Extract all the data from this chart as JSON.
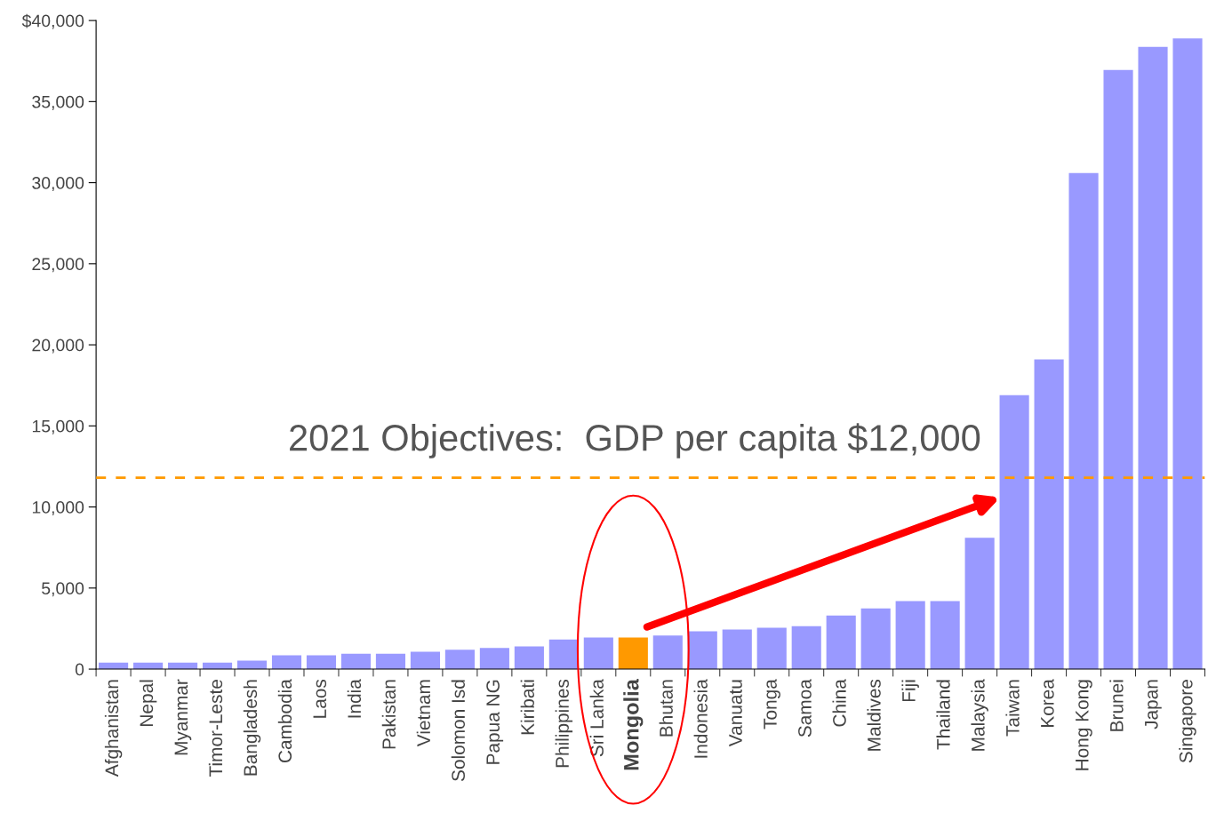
{
  "chart_data": {
    "type": "bar",
    "categories": [
      "Afghanistan",
      "Nepal",
      "Myanmar",
      "Timor-Leste",
      "Bangladesh",
      "Cambodia",
      "Laos",
      "India",
      "Pakistan",
      "Vietnam",
      "Solomon Isd",
      "Papua NG",
      "Kiribati",
      "Philippines",
      "Sri Lanka",
      "Mongolia",
      "Bhutan",
      "Indonesia",
      "Vanuatu",
      "Tonga",
      "Samoa",
      "China",
      "Maldives",
      "Fiji",
      "Thailand",
      "Malaysia",
      "Taiwan",
      "Korea",
      "Hong Kong",
      "Brunei",
      "Japan",
      "Singapore"
    ],
    "values": [
      400,
      400,
      400,
      400,
      530,
      850,
      850,
      950,
      950,
      1070,
      1190,
      1310,
      1400,
      1830,
      1950,
      1950,
      2070,
      2330,
      2440,
      2550,
      2650,
      3300,
      3750,
      4190,
      4190,
      8100,
      16900,
      19100,
      30600,
      36950,
      38370,
      38900
    ],
    "colors": [
      "#9999ff",
      "#9999ff",
      "#9999ff",
      "#9999ff",
      "#9999ff",
      "#9999ff",
      "#9999ff",
      "#9999ff",
      "#9999ff",
      "#9999ff",
      "#9999ff",
      "#9999ff",
      "#9999ff",
      "#9999ff",
      "#9999ff",
      "#ff9900",
      "#9999ff",
      "#9999ff",
      "#9999ff",
      "#9999ff",
      "#9999ff",
      "#9999ff",
      "#9999ff",
      "#9999ff",
      "#9999ff",
      "#9999ff",
      "#9999ff",
      "#9999ff",
      "#9999ff",
      "#9999ff",
      "#9999ff",
      "#9999ff"
    ],
    "ylim": [
      0,
      40000
    ],
    "yticks": [
      0,
      {
        "value": 5000,
        "label": "5,000"
      },
      {
        "value": 10000,
        "label": "10,000"
      },
      {
        "value": 15000,
        "label": "15,000"
      },
      {
        "value": 20000,
        "label": "20,000"
      },
      {
        "value": 25000,
        "label": "25,000"
      },
      {
        "value": 30000,
        "label": "30,000"
      },
      {
        "value": 35000,
        "label": "35,000"
      },
      {
        "value": 40000,
        "label": "$40,000"
      }
    ],
    "ref_lines": [
      {
        "axis": "y",
        "value": 11800,
        "label": "2021 Objectives:  GDP per capita $12,000",
        "color": "#ff9900",
        "line_style": "dashed"
      }
    ],
    "grid": false
  }
}
